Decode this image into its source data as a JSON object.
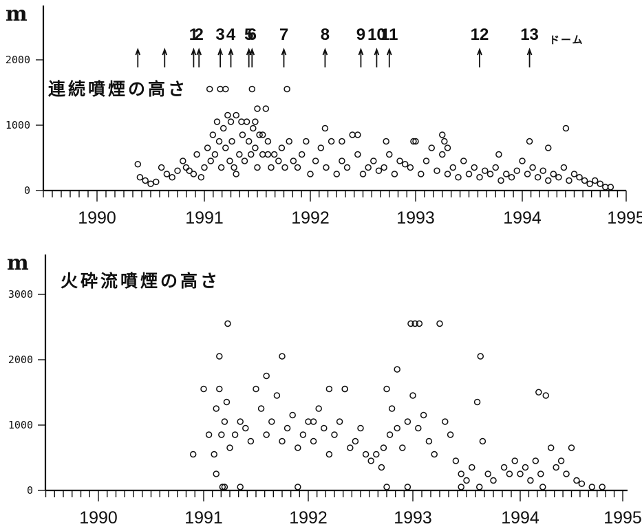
{
  "chart_data": [
    {
      "type": "scatter",
      "title": "連続噴煙の高さ",
      "ylabel": "m",
      "ylim": [
        0,
        2000
      ],
      "y_ticks": [
        "0",
        "1000",
        "2000"
      ],
      "xlim": [
        1989.5,
        1995.1
      ],
      "x_ticks": [
        "1990",
        "1991",
        "1992",
        "1993",
        "1994",
        "1995"
      ],
      "events": [
        {
          "label": "",
          "x": 1990.38
        },
        {
          "label": "",
          "x": 1990.63
        },
        {
          "label": "1",
          "x": 1990.9
        },
        {
          "label": "2",
          "x": 1990.95
        },
        {
          "label": "3",
          "x": 1991.15
        },
        {
          "label": "4",
          "x": 1991.25
        },
        {
          "label": "5",
          "x": 1991.42
        },
        {
          "label": "6",
          "x": 1991.45
        },
        {
          "label": "7",
          "x": 1991.75
        },
        {
          "label": "8",
          "x": 1992.14
        },
        {
          "label": "9",
          "x": 1992.48
        },
        {
          "label": "10",
          "x": 1992.63
        },
        {
          "label": "11",
          "x": 1992.75
        },
        {
          "label": "12",
          "x": 1993.6
        },
        {
          "label": "13",
          "x": 1994.07
        }
      ],
      "event_note": "ドーム",
      "series": [
        {
          "x": [
            1990.38,
            1990.4,
            1990.45,
            1990.5,
            1990.55,
            1990.6,
            1990.65,
            1990.7,
            1990.75,
            1990.8,
            1990.83,
            1990.86,
            1990.9,
            1990.93,
            1990.97,
            1991.0,
            1991.03,
            1991.06,
            1991.08,
            1991.1,
            1991.12,
            1991.14,
            1991.16,
            1991.18,
            1991.2,
            1991.22,
            1991.24,
            1991.26,
            1991.28,
            1991.3,
            1991.33,
            1991.36,
            1991.38,
            1991.4,
            1991.42,
            1991.44,
            1991.46,
            1991.48,
            1991.5,
            1991.52,
            1991.55,
            1991.58,
            1991.6,
            1991.63,
            1991.66,
            1991.7,
            1991.73,
            1991.76,
            1991.8,
            1991.84,
            1991.88,
            1991.92,
            1991.96,
            1992.0,
            1992.05,
            1992.1,
            1992.15,
            1992.2,
            1992.25,
            1992.3,
            1992.35,
            1992.4,
            1992.45,
            1992.5,
            1992.55,
            1992.6,
            1992.65,
            1992.7,
            1992.75,
            1992.8,
            1992.85,
            1992.9,
            1992.95,
            1993.0,
            1993.05,
            1993.1,
            1993.15,
            1993.2,
            1993.25,
            1993.3,
            1993.35,
            1993.4,
            1993.45,
            1993.5,
            1993.55,
            1993.6,
            1993.65,
            1993.7,
            1993.75,
            1993.8,
            1993.85,
            1993.9,
            1993.95,
            1994.0,
            1994.05,
            1994.1,
            1994.15,
            1994.2,
            1994.25,
            1994.3,
            1994.35,
            1994.4,
            1994.45,
            1994.5,
            1994.55,
            1994.6,
            1994.65,
            1994.7,
            1994.75,
            1994.8,
            1994.85,
            1991.05,
            1991.15,
            1991.2,
            1991.3,
            1991.35,
            1991.45,
            1991.5,
            1991.55,
            1991.6,
            1991.78,
            1992.14,
            1992.3,
            1992.45,
            1992.72,
            1992.98,
            1993.25,
            1993.27,
            1993.3,
            1993.78,
            1994.07,
            1994.25,
            1994.42,
            1991.25,
            1991.48
          ],
          "y": [
            350,
            150,
            100,
            50,
            80,
            300,
            200,
            150,
            250,
            400,
            300,
            250,
            200,
            500,
            150,
            300,
            600,
            400,
            800,
            500,
            1000,
            700,
            300,
            900,
            600,
            1100,
            400,
            700,
            300,
            200,
            500,
            800,
            400,
            1000,
            700,
            500,
            900,
            600,
            300,
            800,
            500,
            1200,
            700,
            300,
            500,
            400,
            600,
            300,
            700,
            400,
            300,
            500,
            700,
            200,
            400,
            600,
            300,
            700,
            200,
            400,
            300,
            800,
            500,
            200,
            300,
            400,
            250,
            300,
            500,
            200,
            400,
            350,
            300,
            700,
            200,
            400,
            600,
            250,
            500,
            200,
            300,
            150,
            400,
            200,
            300,
            150,
            250,
            200,
            300,
            100,
            200,
            150,
            250,
            400,
            200,
            300,
            150,
            250,
            100,
            200,
            150,
            300,
            100,
            200,
            150,
            100,
            50,
            100,
            50,
            0,
            0,
            1500,
            1500,
            1500,
            1100,
            1000,
            1500,
            1200,
            800,
            500,
            1500,
            900,
            700,
            800,
            700,
            700,
            800,
            700,
            600,
            500,
            700,
            600,
            900,
            1000,
            1000
          ]
        }
      ]
    },
    {
      "type": "scatter",
      "title": "火砕流噴煙の高さ",
      "ylabel": "m",
      "ylim": [
        0,
        3000
      ],
      "y_ticks": [
        "0",
        "1000",
        "2000",
        "3000"
      ],
      "xlim": [
        1989.5,
        1995.1
      ],
      "x_ticks": [
        "1990",
        "1991",
        "1992",
        "1993",
        "1994",
        "1995"
      ],
      "series": [
        {
          "x": [
            1990.9,
            1991.0,
            1991.05,
            1991.1,
            1991.12,
            1991.15,
            1991.17,
            1991.2,
            1991.22,
            1991.25,
            1991.3,
            1991.35,
            1991.4,
            1991.45,
            1991.5,
            1991.55,
            1991.6,
            1991.65,
            1991.7,
            1991.75,
            1991.8,
            1991.85,
            1991.9,
            1991.95,
            1992.0,
            1992.05,
            1992.1,
            1992.15,
            1992.2,
            1992.25,
            1992.3,
            1992.35,
            1992.4,
            1992.45,
            1992.5,
            1992.55,
            1992.6,
            1992.65,
            1992.7,
            1992.72,
            1992.75,
            1992.78,
            1992.8,
            1992.85,
            1992.9,
            1992.95,
            1993.0,
            1993.05,
            1993.1,
            1993.15,
            1993.2,
            1993.3,
            1993.35,
            1993.4,
            1993.45,
            1993.5,
            1993.55,
            1993.6,
            1993.65,
            1993.7,
            1993.75,
            1993.85,
            1993.9,
            1993.95,
            1994.0,
            1994.05,
            1994.1,
            1994.15,
            1994.2,
            1994.25,
            1994.3,
            1994.35,
            1994.4,
            1994.45,
            1994.5,
            1994.55,
            1994.6,
            1994.7,
            1994.8,
            1991.23,
            1991.15,
            1991.75,
            1992.85,
            1992.98,
            1993.02,
            1993.06,
            1993.25,
            1993.63,
            1994.18,
            1991.6,
            1992.05,
            1992.2,
            1992.35,
            1991.18,
            1991.35,
            1991.9,
            1992.75,
            1992.95,
            1993.62,
            1993.45,
            1994.22,
            1991.12,
            1991.2
          ],
          "y": [
            500,
            1500,
            800,
            500,
            1200,
            1500,
            800,
            1000,
            1300,
            600,
            800,
            1000,
            900,
            700,
            1500,
            1200,
            800,
            1000,
            1400,
            700,
            900,
            1100,
            600,
            800,
            1000,
            700,
            1200,
            900,
            500,
            800,
            1000,
            1500,
            600,
            700,
            900,
            500,
            400,
            500,
            300,
            600,
            1500,
            800,
            1200,
            900,
            600,
            1000,
            1400,
            900,
            1100,
            700,
            500,
            1000,
            800,
            400,
            200,
            100,
            300,
            1300,
            700,
            200,
            100,
            300,
            200,
            400,
            200,
            300,
            100,
            400,
            200,
            1400,
            600,
            300,
            400,
            200,
            600,
            100,
            50,
            0,
            0,
            2500,
            2000,
            2000,
            1800,
            2500,
            2500,
            2500,
            2500,
            2000,
            1450,
            1700,
            1000,
            1500,
            1500,
            0,
            0,
            0,
            0,
            0,
            0,
            0,
            0,
            200,
            0
          ]
        }
      ]
    }
  ]
}
